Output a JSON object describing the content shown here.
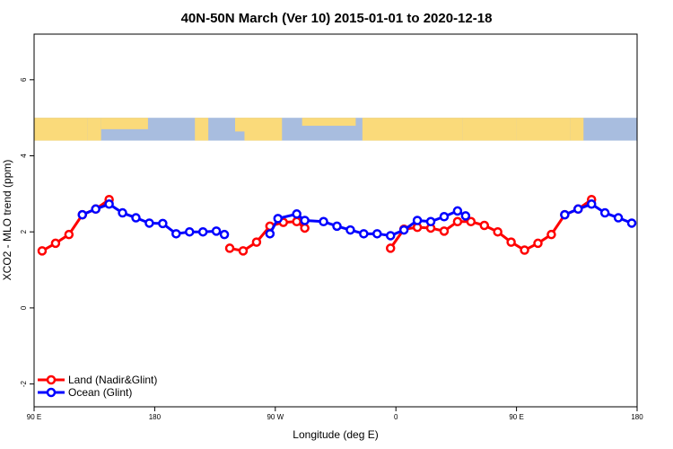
{
  "chart_data": {
    "type": "line",
    "title": "40N-50N March (Ver 10)   2015-01-01 to 2020-12-18",
    "xlabel": "Longitude (deg E)",
    "ylabel": "XCO2 - MLO trend (ppm)",
    "xlim": [
      90,
      540
    ],
    "ylim": [
      -2.6,
      7.2
    ],
    "x_ticks": [
      {
        "value": 90,
        "label": "90 E"
      },
      {
        "value": 180,
        "label": "180"
      },
      {
        "value": 270,
        "label": "90 W"
      },
      {
        "value": 360,
        "label": "0"
      },
      {
        "value": 450,
        "label": "90 E"
      },
      {
        "value": 540,
        "label": "180"
      }
    ],
    "y_ticks": [
      {
        "value": -2,
        "label": "-2"
      },
      {
        "value": 0,
        "label": "0"
      },
      {
        "value": 2,
        "label": "2"
      },
      {
        "value": 4,
        "label": "4"
      },
      {
        "value": 6,
        "label": "6"
      }
    ],
    "map_band": {
      "y_top": 5.0,
      "y_bottom": 4.4,
      "land_color": "#FADA7A",
      "ocean_color": "#A8BDDF"
    },
    "legend_position": "bottom-left",
    "series": [
      {
        "name": "Land (Nadir&Glint)",
        "color": "#FF0000",
        "segments": [
          [
            [
              96,
              1.5
            ],
            [
              106,
              1.7
            ],
            [
              116,
              1.93
            ],
            [
              126,
              2.45
            ],
            [
              136,
              2.6
            ],
            [
              146,
              2.85
            ]
          ],
          [
            [
              236,
              1.57
            ],
            [
              246,
              1.5
            ],
            [
              256,
              1.73
            ],
            [
              266,
              2.15
            ],
            [
              276,
              2.25
            ],
            [
              286,
              2.27
            ],
            [
              292,
              2.1
            ]
          ],
          [
            [
              356,
              1.57
            ],
            [
              366,
              2.07
            ],
            [
              376,
              2.12
            ],
            [
              386,
              2.1
            ],
            [
              396,
              2.02
            ],
            [
              406,
              2.27
            ],
            [
              416,
              2.27
            ],
            [
              426,
              2.17
            ],
            [
              436,
              2.0
            ],
            [
              446,
              1.73
            ],
            [
              456,
              1.52
            ],
            [
              466,
              1.7
            ],
            [
              476,
              1.93
            ],
            [
              486,
              2.45
            ],
            [
              496,
              2.6
            ],
            [
              506,
              2.85
            ]
          ]
        ]
      },
      {
        "name": "Ocean (Glint)",
        "color": "#0000FF",
        "segments": [
          [
            [
              126,
              2.45
            ],
            [
              136,
              2.6
            ],
            [
              146,
              2.73
            ],
            [
              156,
              2.5
            ],
            [
              166,
              2.37
            ],
            [
              176,
              2.23
            ],
            [
              186,
              2.22
            ],
            [
              196,
              1.95
            ],
            [
              206,
              2.0
            ],
            [
              216,
              2.0
            ],
            [
              226,
              2.02
            ],
            [
              232,
              1.93
            ]
          ],
          [
            [
              266,
              1.95
            ],
            [
              272,
              2.35
            ],
            [
              286,
              2.47
            ],
            [
              292,
              2.3
            ],
            [
              306,
              2.27
            ],
            [
              316,
              2.15
            ],
            [
              326,
              2.05
            ],
            [
              336,
              1.95
            ],
            [
              346,
              1.95
            ],
            [
              356,
              1.9
            ],
            [
              366,
              2.05
            ],
            [
              376,
              2.3
            ],
            [
              386,
              2.27
            ],
            [
              396,
              2.4
            ],
            [
              406,
              2.55
            ],
            [
              412,
              2.42
            ]
          ],
          [
            [
              486,
              2.45
            ],
            [
              496,
              2.6
            ],
            [
              506,
              2.73
            ],
            [
              516,
              2.5
            ],
            [
              526,
              2.37
            ],
            [
              536,
              2.23
            ]
          ]
        ]
      }
    ]
  }
}
